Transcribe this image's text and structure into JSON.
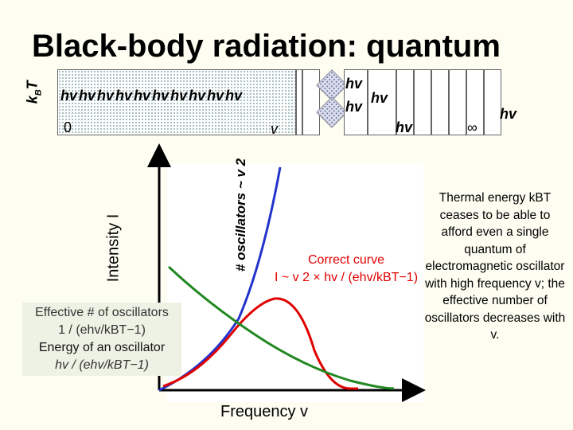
{
  "title": "Black-body radiation: quantum",
  "kbt_label": "kBT",
  "hv_label": "hv",
  "hv_row": [
    "hv",
    "hv",
    "hv",
    "hv",
    "hv",
    "hv",
    "hv",
    "hv",
    "hv",
    "hv"
  ],
  "zero_label": "0",
  "nu_label": "v",
  "inf_label": "∞",
  "y_axis_label": "Intensity I",
  "oscillators_label": "# oscillators ~ v 2",
  "correct_curve": {
    "line1": "Correct curve",
    "line2": "I ~ v 2 × hv / (ehv/kBT−1)"
  },
  "effective_box": {
    "line1": "Effective # of oscillators",
    "line2": "1 / (ehv/kBT−1)",
    "line3": "Energy of an oscillator",
    "line4": "hv / (ehv/kBT−1)"
  },
  "thermal_text": "Thermal energy kBT ceases to be able to afford even a single quantum of electromagnetic oscillator with high frequency v; the effective number of oscillators decreases with v.",
  "x_axis_label": "Frequency v",
  "colors": {
    "correct": "#e00000",
    "oscillators": "#2233cc",
    "effective": "#228822",
    "dots": "#4477cc"
  }
}
